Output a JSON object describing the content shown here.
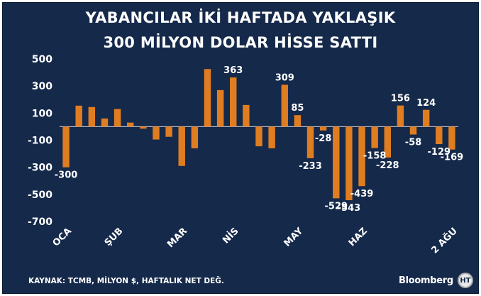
{
  "title": {
    "line1": "YABANCILAR İKİ HAFTADA YAKLAŞIK",
    "line2": "300 MİLYON DOLAR HİSSE SATTI"
  },
  "source": "KAYNAK: TCMB, MİLYON $, HAFTALIK NET DEĞ.",
  "brand": {
    "name": "Bloomberg",
    "seal_text": "HT"
  },
  "colors": {
    "background": "#15294a",
    "bar": "#e07d21",
    "text": "#ffffff"
  },
  "chart_data": {
    "type": "bar",
    "title": "YABANCILAR İKİ HAFTADA YAKLAŞIK 300 MİLYON DOLAR HİSSE SATTI",
    "xlabel": "",
    "ylabel": "",
    "ylim": [
      -700,
      500
    ],
    "yticks": [
      500,
      300,
      100,
      -100,
      -300,
      -500,
      -700
    ],
    "x_tick_labels": [
      {
        "label": "OCA",
        "index": 0
      },
      {
        "label": "ŞUB",
        "index": 4
      },
      {
        "label": "MAR",
        "index": 9
      },
      {
        "label": "NİS",
        "index": 13
      },
      {
        "label": "MAY",
        "index": 18
      },
      {
        "label": "HAZ",
        "index": 23
      },
      {
        "label": "2 AĞU",
        "index": 30
      }
    ],
    "values": [
      -300,
      155,
      145,
      60,
      130,
      30,
      -15,
      -95,
      -75,
      -290,
      -160,
      425,
      270,
      363,
      160,
      -145,
      -160,
      309,
      85,
      -233,
      -28,
      -529,
      -543,
      -439,
      -158,
      -228,
      156,
      -58,
      124,
      -129,
      -169
    ],
    "value_labels": [
      {
        "index": 0,
        "text": "-300"
      },
      {
        "index": 13,
        "text": "363"
      },
      {
        "index": 17,
        "text": "309"
      },
      {
        "index": 18,
        "text": "85"
      },
      {
        "index": 19,
        "text": "-233"
      },
      {
        "index": 20,
        "text": "-28"
      },
      {
        "index": 21,
        "text": "-529"
      },
      {
        "index": 22,
        "text": "-543"
      },
      {
        "index": 23,
        "text": "-439"
      },
      {
        "index": 24,
        "text": "-158"
      },
      {
        "index": 25,
        "text": "-228"
      },
      {
        "index": 26,
        "text": "156"
      },
      {
        "index": 27,
        "text": "-58"
      },
      {
        "index": 28,
        "text": "124"
      },
      {
        "index": 29,
        "text": "-129"
      },
      {
        "index": 30,
        "text": "-169"
      }
    ]
  }
}
